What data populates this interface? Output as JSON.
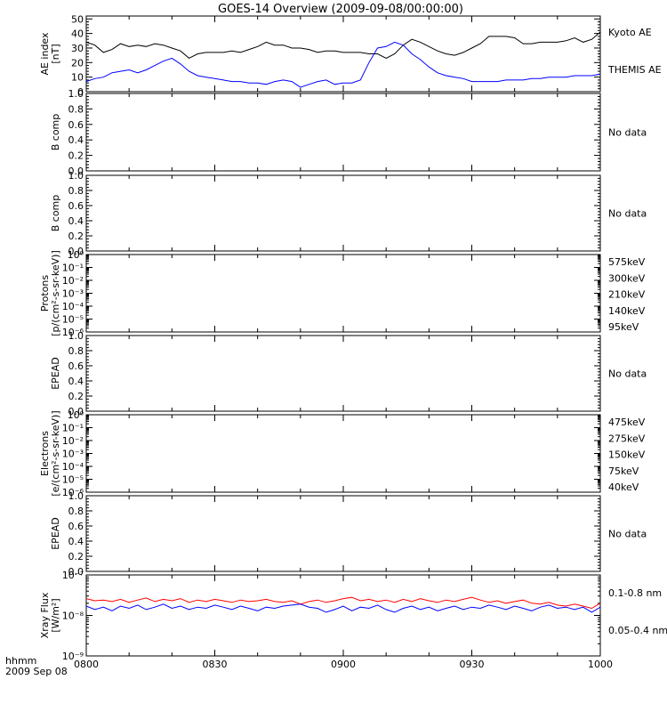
{
  "title": "GOES-14 Overview (2009-09-08/00:00:00)",
  "time_axis": {
    "ticks": [
      "0800",
      "0830",
      "0900",
      "0930",
      "1000"
    ],
    "corner": [
      "hhmm",
      "2009 Sep 08"
    ]
  },
  "colors": {
    "black": "#000000",
    "blue": "#0000ff",
    "red": "#ff0000",
    "dark_red": "#a00000",
    "orange": "#e6a000",
    "green": "#00c800",
    "navy": "#0000b4"
  },
  "chart_data": [
    {
      "type": "line",
      "ylabel": [
        "AE index",
        "[nT]"
      ],
      "ylim": [
        0,
        52
      ],
      "yticks": [
        "0",
        "10",
        "20",
        "30",
        "40",
        "50"
      ],
      "x_range": [
        "0800",
        "1000"
      ],
      "series": [
        {
          "name": "Kyoto AE",
          "color": "#000000",
          "x": [
            0,
            2,
            4,
            6,
            8,
            10,
            12,
            14,
            16,
            18,
            20,
            22,
            24,
            26,
            28,
            30,
            32,
            34,
            36,
            38,
            40,
            42,
            44,
            46,
            48,
            50,
            52,
            54,
            56,
            58,
            60,
            62,
            64,
            66,
            68,
            70,
            72,
            74,
            76,
            78,
            80,
            82,
            84,
            86,
            88,
            90,
            92,
            94,
            96,
            98,
            100,
            102,
            104,
            106,
            108,
            110,
            112,
            114,
            116,
            118,
            120
          ],
          "values": [
            34,
            32,
            27,
            29,
            33,
            31,
            32,
            31,
            33,
            32,
            30,
            28,
            23,
            26,
            27,
            27,
            27,
            28,
            27,
            29,
            31,
            34,
            32,
            32,
            30,
            30,
            29,
            27,
            28,
            28,
            27,
            27,
            27,
            26,
            26,
            23,
            26,
            32,
            36,
            34,
            31,
            28,
            26,
            25,
            27,
            30,
            33,
            38,
            38,
            38,
            37,
            33,
            33,
            34,
            34,
            34,
            35,
            37,
            34,
            36,
            41
          ]
        },
        {
          "name": "THEMIS AE",
          "color": "#0000ff",
          "x": [
            0,
            2,
            4,
            6,
            8,
            10,
            12,
            14,
            16,
            18,
            20,
            22,
            24,
            26,
            28,
            30,
            32,
            34,
            36,
            38,
            40,
            42,
            44,
            46,
            48,
            50,
            52,
            54,
            56,
            58,
            60,
            62,
            64,
            66,
            68,
            70,
            72,
            74,
            76,
            78,
            80,
            82,
            84,
            86,
            88,
            90,
            92,
            94,
            96,
            98,
            100,
            102,
            104,
            106,
            108,
            110,
            112,
            114,
            116,
            118,
            120
          ],
          "values": [
            7,
            9,
            10,
            13,
            14,
            15,
            13,
            15,
            18,
            21,
            23,
            19,
            14,
            11,
            10,
            9,
            8,
            7,
            7,
            6,
            6,
            5,
            7,
            8,
            7,
            3,
            5,
            7,
            8,
            5,
            6,
            6,
            8,
            20,
            30,
            31,
            34,
            32,
            26,
            22,
            17,
            13,
            11,
            10,
            9,
            7,
            7,
            7,
            7,
            8,
            8,
            8,
            9,
            9,
            10,
            10,
            10,
            11,
            11,
            11,
            12
          ]
        }
      ]
    },
    {
      "type": "line",
      "ylabel": [
        "B comp"
      ],
      "ylim": [
        0,
        1
      ],
      "yticks": [
        "0.0",
        "0.2",
        "0.4",
        "0.6",
        "0.8",
        "1.0"
      ],
      "x_range": [
        "0800",
        "1000"
      ],
      "note": "No data",
      "series": []
    },
    {
      "type": "line",
      "ylabel": [
        "B comp"
      ],
      "ylim": [
        0,
        1
      ],
      "yticks": [
        "0.0",
        "0.2",
        "0.4",
        "0.6",
        "0.8",
        "1.0"
      ],
      "x_range": [
        "0800",
        "1000"
      ],
      "note": "No data",
      "series": []
    },
    {
      "type": "line",
      "ylabel": [
        "Protons",
        "[p/(cm²-s-sr-keV)]"
      ],
      "log_scale": true,
      "ylim": [
        1e-06,
        1
      ],
      "yticks": [
        "10⁰",
        "10⁻¹",
        "10⁻²",
        "10⁻³",
        "10⁻⁴",
        "10⁻⁵",
        "10⁻⁶"
      ],
      "x_range": [
        "0800",
        "1000"
      ],
      "legend": [
        {
          "label": "575keV",
          "color": "#a00000"
        },
        {
          "label": "300keV",
          "color": "#e6a000"
        },
        {
          "label": "210keV",
          "color": "#00c800"
        },
        {
          "label": "140keV",
          "color": "#0000b4"
        },
        {
          "label": "95keV",
          "color": "#000000"
        }
      ],
      "series": []
    },
    {
      "type": "line",
      "ylabel": [
        "EPEAD"
      ],
      "ylim": [
        0,
        1
      ],
      "yticks": [
        "0.0",
        "0.2",
        "0.4",
        "0.6",
        "0.8",
        "1.0"
      ],
      "x_range": [
        "0800",
        "1000"
      ],
      "note": "No data",
      "series": []
    },
    {
      "type": "line",
      "ylabel": [
        "Electrons",
        "[e/(cm²-s-sr-keV)]"
      ],
      "log_scale": true,
      "ylim": [
        1e-06,
        1
      ],
      "yticks": [
        "10⁰",
        "10⁻¹",
        "10⁻²",
        "10⁻³",
        "10⁻⁴",
        "10⁻⁵",
        "10⁻⁶"
      ],
      "x_range": [
        "0800",
        "1000"
      ],
      "legend": [
        {
          "label": "475keV",
          "color": "#a00000"
        },
        {
          "label": "275keV",
          "color": "#e6a000"
        },
        {
          "label": "150keV",
          "color": "#00c800"
        },
        {
          "label": "75keV",
          "color": "#0000b4"
        },
        {
          "label": "40keV",
          "color": "#000000"
        }
      ],
      "series": []
    },
    {
      "type": "line",
      "ylabel": [
        "EPEAD"
      ],
      "ylim": [
        0,
        1
      ],
      "yticks": [
        "0.0",
        "0.2",
        "0.4",
        "0.6",
        "0.8",
        "1.0"
      ],
      "x_range": [
        "0800",
        "1000"
      ],
      "note": "No data",
      "series": []
    },
    {
      "type": "line",
      "ylabel": [
        "Xray Flux",
        "[W/m²]"
      ],
      "log_scale": true,
      "ylim": [
        1e-09,
        1e-07
      ],
      "yticks": [
        "10⁻⁷",
        "10⁻⁸",
        "10⁻⁹"
      ],
      "x_range": [
        "0800",
        "1000"
      ],
      "series": [
        {
          "name": "0.1-0.8 nm",
          "color": "#ff0000",
          "x": [
            0,
            2,
            4,
            6,
            8,
            10,
            12,
            14,
            16,
            18,
            20,
            22,
            24,
            26,
            28,
            30,
            32,
            34,
            36,
            38,
            40,
            42,
            44,
            46,
            48,
            50,
            52,
            54,
            56,
            58,
            60,
            62,
            64,
            66,
            68,
            70,
            72,
            74,
            76,
            78,
            80,
            82,
            84,
            86,
            88,
            90,
            92,
            94,
            96,
            98,
            100,
            102,
            104,
            106,
            108,
            110,
            112,
            114,
            116,
            118,
            120
          ],
          "values": [
            2.6e-08,
            2.3e-08,
            2.4e-08,
            2.2e-08,
            2.5e-08,
            2.1e-08,
            2.4e-08,
            2.7e-08,
            2.2e-08,
            2.5e-08,
            2.3e-08,
            2.6e-08,
            2.1e-08,
            2.4e-08,
            2.2e-08,
            2.5e-08,
            2.3e-08,
            2.1e-08,
            2.4e-08,
            2.2e-08,
            2.3e-08,
            2.5e-08,
            2.2e-08,
            2.1e-08,
            2.3e-08,
            1.9e-08,
            2.2e-08,
            2.4e-08,
            2.1e-08,
            2.3e-08,
            2.6e-08,
            2.8e-08,
            2.3e-08,
            2.5e-08,
            2.2e-08,
            2.4e-08,
            2.1e-08,
            2.5e-08,
            2.2e-08,
            2.6e-08,
            2.3e-08,
            2.1e-08,
            2.4e-08,
            2.2e-08,
            2.5e-08,
            2.8e-08,
            2.4e-08,
            2.1e-08,
            2.3e-08,
            2e-08,
            2.2e-08,
            2.4e-08,
            2e-08,
            1.9e-08,
            2.1e-08,
            1.8e-08,
            1.7e-08,
            1.9e-08,
            1.7e-08,
            1.5e-08,
            2e-08
          ]
        },
        {
          "name": "0.05-0.4 nm",
          "color": "#0000ff",
          "x": [
            0,
            2,
            4,
            6,
            8,
            10,
            12,
            14,
            16,
            18,
            20,
            22,
            24,
            26,
            28,
            30,
            32,
            34,
            36,
            38,
            40,
            42,
            44,
            46,
            48,
            50,
            52,
            54,
            56,
            58,
            60,
            62,
            64,
            66,
            68,
            70,
            72,
            74,
            76,
            78,
            80,
            82,
            84,
            86,
            88,
            90,
            92,
            94,
            96,
            98,
            100,
            102,
            104,
            106,
            108,
            110,
            112,
            114,
            116,
            118,
            120
          ],
          "values": [
            1.7e-08,
            1.4e-08,
            1.6e-08,
            1.3e-08,
            1.7e-08,
            1.5e-08,
            1.8e-08,
            1.4e-08,
            1.6e-08,
            1.9e-08,
            1.5e-08,
            1.7e-08,
            1.4e-08,
            1.6e-08,
            1.5e-08,
            1.8e-08,
            1.6e-08,
            1.4e-08,
            1.7e-08,
            1.5e-08,
            1.3e-08,
            1.6e-08,
            1.5e-08,
            1.7e-08,
            1.8e-08,
            1.9e-08,
            1.6e-08,
            1.5e-08,
            1.2e-08,
            1.4e-08,
            1.7e-08,
            1.3e-08,
            1.6e-08,
            1.5e-08,
            1.8e-08,
            1.4e-08,
            1.2e-08,
            1.5e-08,
            1.7e-08,
            1.4e-08,
            1.6e-08,
            1.3e-08,
            1.5e-08,
            1.7e-08,
            1.4e-08,
            1.6e-08,
            1.5e-08,
            1.8e-08,
            1.6e-08,
            1.4e-08,
            1.7e-08,
            1.5e-08,
            1.3e-08,
            1.6e-08,
            1.8e-08,
            1.5e-08,
            1.6e-08,
            1.4e-08,
            1.6e-08,
            1.2e-08,
            1.6e-08
          ]
        }
      ]
    }
  ]
}
